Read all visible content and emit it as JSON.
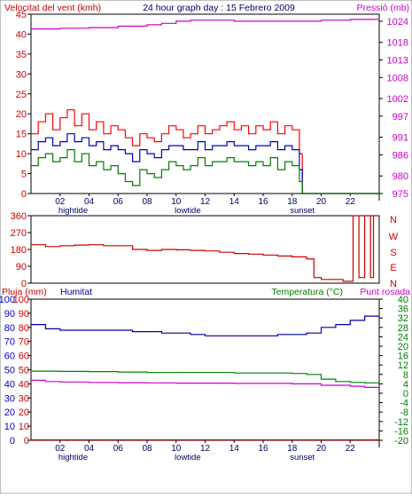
{
  "header": {
    "title": "24 hour graph day : 15 Febrero 2009",
    "left_label": "Velocitat del vent (kmh)",
    "right_label": "Pressió (mb)"
  },
  "panel2": {
    "compass": [
      "N",
      "W",
      "S",
      "E",
      "N"
    ]
  },
  "panel3": {
    "left_label_1": "Pluja (mm)",
    "left_label_2": "Humitat",
    "right_label_1": "Temperatura (°C)",
    "right_label_2": "Punt rosada"
  },
  "x_axis": {
    "ticks": [
      "02",
      "04",
      "06",
      "08",
      "10",
      "12",
      "14",
      "16",
      "18",
      "20",
      "22"
    ],
    "markers": [
      {
        "label": "hightide",
        "hour": 2.9
      },
      {
        "label": "lowtide",
        "hour": 10.8
      },
      {
        "label": "sunset",
        "hour": 18.7
      }
    ]
  },
  "colors": {
    "wind_gust": "#ff0000",
    "wind_avg": "#0000cc",
    "wind_min": "#008000",
    "pressure": "#cc00cc",
    "direction": "#cc0000",
    "humidity": "#0000aa",
    "temperature": "#008000",
    "dewpoint": "#cc00cc",
    "rain": "#cc0000"
  },
  "chart_data": [
    {
      "type": "line",
      "name": "wind-pressure",
      "x_range": [
        0,
        24
      ],
      "ylim": [
        0,
        45
      ],
      "y2lim": [
        975,
        1026
      ],
      "y_ticks": [
        0,
        5,
        10,
        15,
        20,
        25,
        30,
        35,
        40,
        45
      ],
      "y2_ticks": [
        975,
        980,
        986,
        991,
        997,
        1002,
        1008,
        1013,
        1018,
        1024
      ],
      "series": [
        {
          "key": "gust",
          "axis": "left",
          "x": [
            0,
            0.5,
            1,
            1.5,
            2,
            2.5,
            3,
            3.5,
            4,
            4.5,
            5,
            5.5,
            6,
            6.5,
            7,
            7.5,
            8,
            8.5,
            9,
            9.5,
            10,
            10.5,
            11,
            11.5,
            12,
            12.5,
            13,
            13.5,
            14,
            14.5,
            15,
            15.5,
            16,
            16.5,
            17,
            17.5,
            18,
            18.5,
            18.7,
            19,
            24
          ],
          "y": [
            15,
            18,
            20,
            16,
            19,
            21,
            17,
            20,
            16,
            18,
            15,
            17,
            16,
            14,
            12,
            15,
            14,
            13,
            15,
            17,
            16,
            14,
            15,
            17,
            15,
            16,
            17,
            18,
            16,
            17,
            15,
            17,
            16,
            18,
            15,
            17,
            16,
            10,
            0,
            0,
            0
          ]
        },
        {
          "key": "avg",
          "axis": "left",
          "x": [
            0,
            0.5,
            1,
            1.5,
            2,
            2.5,
            3,
            3.5,
            4,
            4.5,
            5,
            5.5,
            6,
            6.5,
            7,
            7.5,
            8,
            8.5,
            9,
            9.5,
            10,
            10.5,
            11,
            11.5,
            12,
            12.5,
            13,
            13.5,
            14,
            14.5,
            15,
            15.5,
            16,
            16.5,
            17,
            17.5,
            18,
            18.5,
            18.7,
            19,
            24
          ],
          "y": [
            11,
            13,
            14,
            12,
            13,
            15,
            13,
            14,
            12,
            13,
            11,
            12,
            11,
            10,
            8,
            11,
            10,
            9,
            11,
            12,
            12,
            11,
            11,
            13,
            11,
            12,
            12,
            13,
            12,
            12,
            11,
            12,
            12,
            13,
            11,
            12,
            11,
            6,
            0,
            0,
            0
          ]
        },
        {
          "key": "min",
          "axis": "left",
          "x": [
            0,
            0.5,
            1,
            1.5,
            2,
            2.5,
            3,
            3.5,
            4,
            4.5,
            5,
            5.5,
            6,
            6.5,
            7,
            7.5,
            8,
            8.5,
            9,
            9.5,
            10,
            10.5,
            11,
            11.5,
            12,
            12.5,
            13,
            13.5,
            14,
            14.5,
            15,
            15.5,
            16,
            16.5,
            17,
            17.5,
            18,
            18.5,
            18.7,
            19,
            24
          ],
          "y": [
            7,
            9,
            10,
            8,
            9,
            11,
            8,
            10,
            7,
            8,
            6,
            7,
            5,
            3,
            2,
            6,
            5,
            4,
            6,
            8,
            7,
            6,
            7,
            9,
            7,
            8,
            8,
            9,
            8,
            8,
            7,
            8,
            7,
            9,
            6,
            8,
            7,
            3,
            0,
            0,
            0
          ]
        },
        {
          "key": "pressure",
          "axis": "right",
          "x": [
            0,
            2,
            4,
            6,
            8,
            9,
            10,
            11,
            12,
            14,
            16,
            18,
            20,
            22,
            24
          ],
          "y": [
            1021.8,
            1022,
            1022.2,
            1022.6,
            1023,
            1023.4,
            1024,
            1024.3,
            1024.3,
            1024,
            1024,
            1024,
            1024.3,
            1024.5,
            1024.6
          ]
        }
      ]
    },
    {
      "type": "line",
      "name": "wind-direction",
      "x_range": [
        0,
        24
      ],
      "ylim": [
        0,
        360
      ],
      "y_ticks": [
        0,
        90,
        180,
        270,
        360
      ],
      "series": [
        {
          "key": "direction",
          "x": [
            0,
            1,
            2,
            3,
            4,
            5,
            6,
            7,
            8,
            9,
            10,
            11,
            12,
            13,
            14,
            15,
            16,
            17,
            18,
            19,
            19.5,
            20,
            21,
            21.5,
            22,
            22.2,
            22.6,
            23,
            23.4,
            23.6,
            24
          ],
          "y": [
            205,
            195,
            200,
            203,
            205,
            200,
            200,
            180,
            175,
            180,
            178,
            175,
            172,
            165,
            158,
            155,
            150,
            145,
            140,
            130,
            30,
            20,
            20,
            10,
            10,
            360,
            30,
            360,
            30,
            360,
            360
          ]
        }
      ]
    },
    {
      "type": "line",
      "name": "humidity-temperature",
      "x_range": [
        0,
        24
      ],
      "ylim": [
        0,
        100
      ],
      "y2lim": [
        -20,
        40
      ],
      "y_ticks": [
        0,
        10,
        20,
        30,
        40,
        50,
        60,
        70,
        80,
        90,
        100
      ],
      "y2_ticks": [
        -20,
        -16,
        -12,
        -8,
        -4,
        0,
        4,
        8,
        12,
        16,
        20,
        24,
        28,
        32,
        36,
        40
      ],
      "series": [
        {
          "key": "rain",
          "axis": "left",
          "x": [
            0,
            24
          ],
          "y": [
            0.3,
            0.3
          ]
        },
        {
          "key": "humidity",
          "axis": "left",
          "x": [
            0,
            1,
            2,
            3,
            4,
            5,
            6,
            7,
            8,
            9,
            10,
            11,
            12,
            13,
            14,
            15,
            16,
            17,
            18,
            19,
            20,
            21,
            22,
            23,
            24
          ],
          "y": [
            82,
            79,
            78,
            78,
            78,
            78,
            78,
            77,
            77,
            76,
            76,
            75,
            74,
            74,
            74,
            74,
            74,
            75,
            75,
            76,
            80,
            82,
            85,
            88,
            88
          ]
        },
        {
          "key": "temperature",
          "axis": "right",
          "x": [
            0,
            2,
            4,
            6,
            8,
            10,
            12,
            14,
            16,
            18,
            19,
            20,
            21,
            22,
            23,
            24
          ],
          "y": [
            9.4,
            9.3,
            9.2,
            9,
            8.8,
            8.8,
            8.8,
            8.6,
            8.6,
            8.4,
            8,
            6,
            5,
            4.6,
            4.4,
            4.6
          ]
        },
        {
          "key": "dewpoint",
          "axis": "right",
          "x": [
            0,
            1,
            2,
            4,
            6,
            8,
            10,
            12,
            14,
            16,
            18,
            20,
            22,
            23,
            24
          ],
          "y": [
            5.5,
            5,
            4.8,
            4.6,
            4.5,
            4.4,
            4.3,
            4.3,
            4.2,
            4.2,
            4,
            3.4,
            3,
            2.5,
            2.7
          ]
        }
      ]
    }
  ]
}
